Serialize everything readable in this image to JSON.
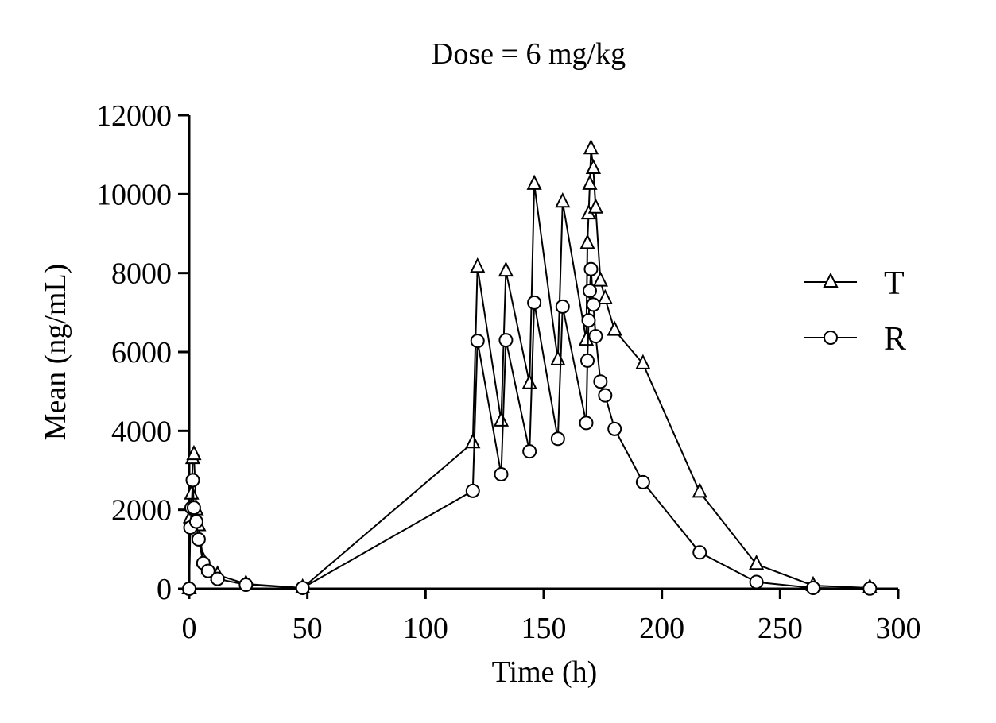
{
  "chart_data": {
    "type": "line",
    "title": "Dose = 6 mg/kg",
    "xlabel": "Time (h)",
    "ylabel": "Mean (ng/mL)",
    "xlim": [
      0,
      300
    ],
    "ylim": [
      0,
      12000
    ],
    "xticks": [
      "0",
      "50",
      "100",
      "150",
      "200",
      "250",
      "300"
    ],
    "yticks": [
      "0",
      "2000",
      "4000",
      "6000",
      "8000",
      "10000",
      "12000"
    ],
    "grid": false,
    "legend_position": "right",
    "series": [
      {
        "name": "T",
        "marker": "triangle",
        "x": [
          0,
          0.5,
          1,
          1.5,
          2,
          3,
          4,
          6,
          8,
          12,
          24,
          48,
          120,
          122,
          132,
          134,
          144,
          146,
          156,
          158,
          168,
          168.5,
          169,
          169.5,
          170,
          171,
          172,
          174,
          176,
          180,
          192,
          216,
          240,
          264,
          288
        ],
        "y": [
          0,
          1800,
          2400,
          3300,
          3400,
          2000,
          1600,
          700,
          500,
          350,
          120,
          20,
          3700,
          8150,
          4250,
          8050,
          5200,
          10250,
          5800,
          9800,
          6300,
          8750,
          9500,
          10250,
          11150,
          10650,
          9650,
          7800,
          7350,
          6550,
          5700,
          2450,
          620,
          80,
          20
        ]
      },
      {
        "name": "R",
        "marker": "circle",
        "x": [
          0,
          0.5,
          1,
          1.5,
          2,
          3,
          4,
          6,
          8,
          12,
          24,
          48,
          120,
          122,
          132,
          134,
          144,
          146,
          156,
          158,
          168,
          168.5,
          169,
          169.5,
          170,
          171,
          172,
          174,
          176,
          180,
          192,
          216,
          240,
          264,
          288
        ],
        "y": [
          0,
          1550,
          2050,
          2750,
          2050,
          1700,
          1250,
          650,
          450,
          250,
          100,
          20,
          2480,
          6280,
          2900,
          6300,
          3480,
          7250,
          3800,
          7150,
          4200,
          5780,
          6800,
          7550,
          8100,
          7200,
          6400,
          5250,
          4900,
          4050,
          2700,
          920,
          170,
          20,
          5
        ]
      }
    ]
  }
}
